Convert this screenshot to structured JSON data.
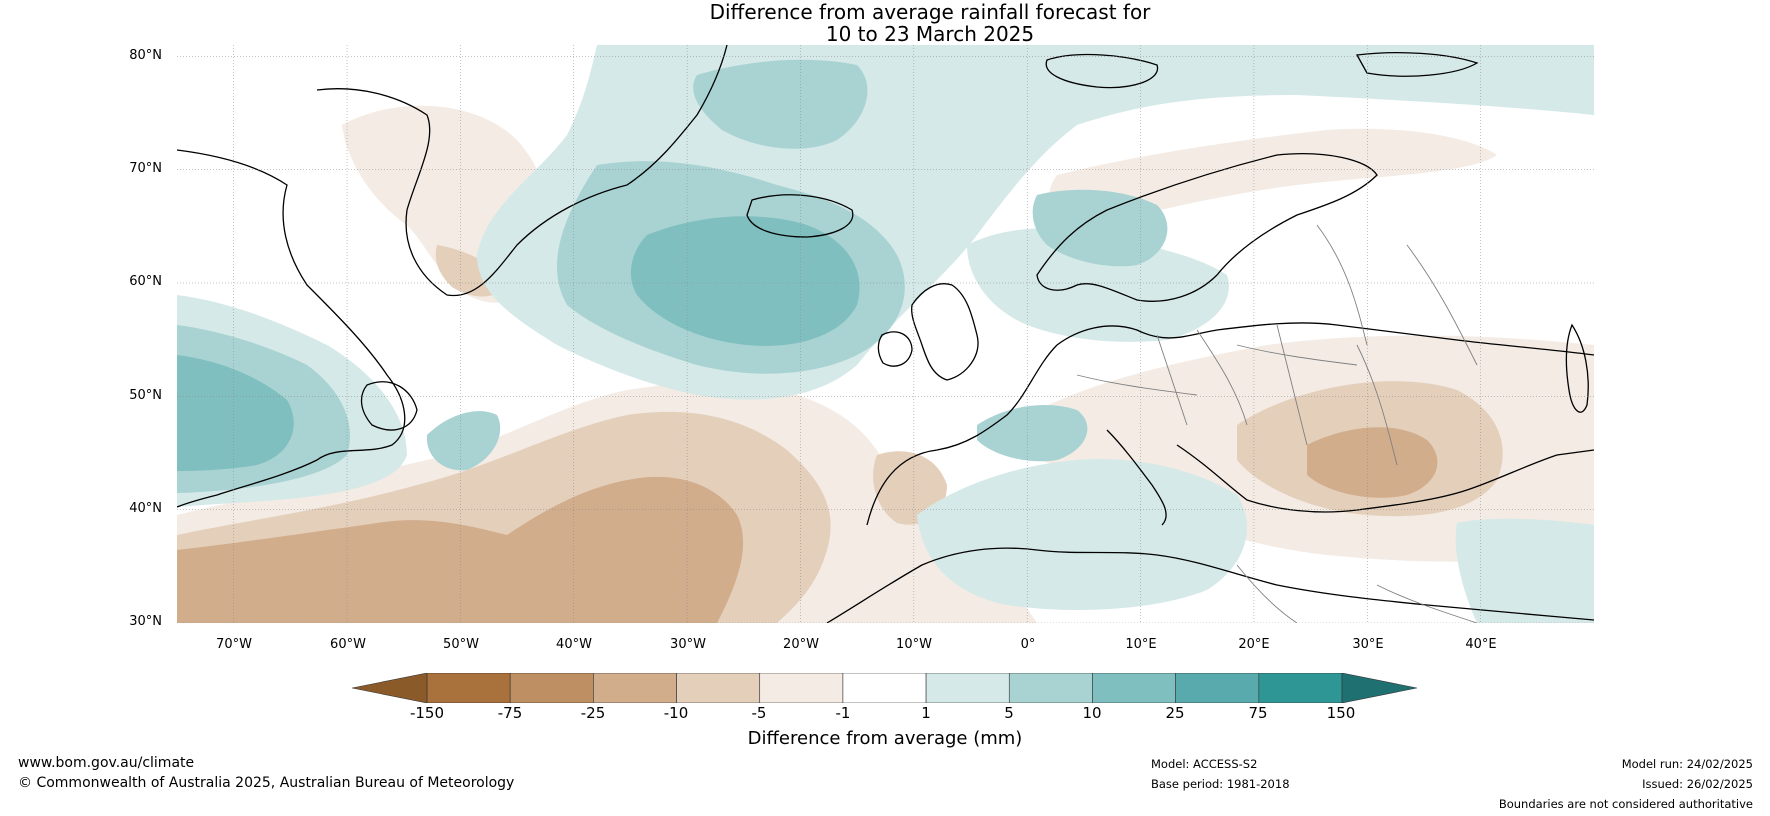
{
  "title": {
    "line1": "Difference from average rainfall forecast for",
    "line2": "10 to 23 March 2025"
  },
  "map": {
    "lat_labels": [
      "80°N",
      "70°N",
      "60°N",
      "50°N",
      "40°N",
      "30°N"
    ],
    "lon_labels": [
      "70°W",
      "60°W",
      "50°W",
      "40°W",
      "30°W",
      "20°W",
      "10°W",
      "0°",
      "10°E",
      "20°E",
      "30°E",
      "40°E"
    ],
    "lon_range": [
      -75,
      50
    ],
    "lat_range": [
      30,
      81
    ],
    "gridlines": true,
    "coastline_color": "#000000",
    "border_color": "#808080"
  },
  "colorbar": {
    "ticks": [
      "-150",
      "-75",
      "-25",
      "-10",
      "-5",
      "-1",
      "1",
      "5",
      "10",
      "25",
      "75",
      "150"
    ],
    "colors": [
      "#a9713c",
      "#bf8f64",
      "#d1ad8c",
      "#e4cfbb",
      "#f3ebe4",
      "#ffffff",
      "#d5e9e8",
      "#a9d3d3",
      "#80bfbf",
      "#58aaad",
      "#2f9696"
    ],
    "extend_low_color": "#8b5a29",
    "extend_high_color": "#1f7070",
    "label": "Difference from average (mm)"
  },
  "footer": {
    "website": "www.bom.gov.au/climate",
    "copyright": "© Commonwealth of Australia 2025, Australian Bureau of Meteorology",
    "model": "Model: ACCESS-S2",
    "base_period": "Base period: 1981-2018",
    "model_run": "Model run: 24/02/2025",
    "issued": "Issued: 26/02/2025",
    "disclaimer": "Boundaries are not considered authoritative"
  }
}
